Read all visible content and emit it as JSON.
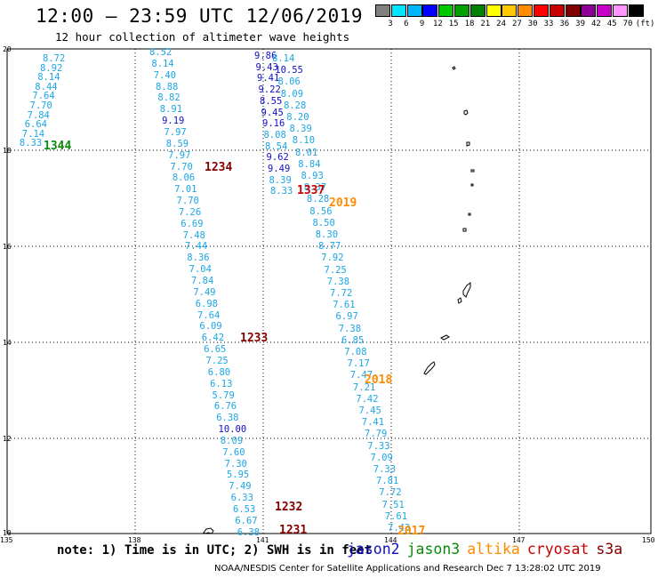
{
  "header": {
    "title": "12:00 – 23:59 UTC 12/06/2019",
    "subtitle": "12 hour collection of altimeter wave heights"
  },
  "legend": {
    "colors": [
      "#808080",
      "#00e5ff",
      "#00b4ff",
      "#0000ff",
      "#00c800",
      "#00a000",
      "#008000",
      "#ffff00",
      "#ffc800",
      "#ff8c00",
      "#ff0000",
      "#c80000",
      "#800000",
      "#8c0096",
      "#c800c8",
      "#ff96ff",
      "#000000"
    ],
    "labels": [
      "3",
      "6",
      "9",
      "12",
      "15",
      "18",
      "21",
      "24",
      "27",
      "30",
      "33",
      "36",
      "39",
      "42",
      "45",
      "70"
    ],
    "unit": "(ft)"
  },
  "axes": {
    "lat_labels": [
      "20",
      "18",
      "16",
      "14",
      "12",
      "10"
    ],
    "lon_labels": [
      "135",
      "138",
      "141",
      "144",
      "147",
      "150"
    ]
  },
  "passes": [
    {
      "values": [
        "8.72",
        "8.92",
        "8.14",
        "8.44",
        "7.64",
        "7.70",
        "7.84",
        "6.64",
        "7.14",
        "8.33"
      ]
    },
    {
      "values": [
        "8.52",
        "8.14",
        "7.40",
        "8.88",
        "8.82",
        "8.91",
        "9.19",
        "7.97",
        "8.59",
        "7.97",
        "7.70",
        "8.06",
        "7.01",
        "7.70",
        "7.26",
        "6.69",
        "7.48",
        "7.44",
        "8.36",
        "7.04",
        "7.84",
        "7.49",
        "6.98",
        "7.64",
        "6.09",
        "6.42",
        "6.65",
        "7.25",
        "6.80",
        "6.13",
        "5.79",
        "6.76",
        "6.38",
        "10.00",
        "8.09",
        "7.60",
        "7.30",
        "5.95",
        "7.49",
        "6.33",
        "6.53",
        "6.67",
        "6.38"
      ]
    },
    {
      "values": [
        "9.86",
        "9.43",
        "9.41",
        "9.22",
        "8.55",
        "9.45",
        "9.16",
        "8.08",
        "8.54",
        "9.62",
        "9.49",
        "8.39",
        "8.33"
      ]
    },
    {
      "values": [
        "8.14",
        "10.55",
        "8.06",
        "8.09",
        "8.28",
        "8.20",
        "8.39",
        "8.10",
        "8.01",
        "8.84",
        "8.93",
        "8.37",
        "8.28",
        "8.56",
        "8.50",
        "8.30",
        "8.77",
        "7.92",
        "7.25",
        "7.38",
        "7.72",
        "7.61",
        "6.97",
        "7.38",
        "6.85",
        "7.08",
        "7.17",
        "7.47",
        "7.21",
        "7.42",
        "7.45",
        "7.41",
        "7.79",
        "7.33",
        "7.09",
        "7.33",
        "7.81",
        "7.72",
        "7.51",
        "7.61",
        "7.43"
      ]
    }
  ],
  "rev_labels": [
    {
      "text": "1344",
      "color": "#0a8a0a"
    },
    {
      "text": "1234",
      "color": "#800000"
    },
    {
      "text": "1337",
      "color": "#c80000"
    },
    {
      "text": "2019",
      "color": "#ff8c00"
    },
    {
      "text": "1233",
      "color": "#800000"
    },
    {
      "text": "2018",
      "color": "#ff8c00"
    },
    {
      "text": "1232",
      "color": "#800000"
    },
    {
      "text": "1231",
      "color": "#800000"
    },
    {
      "text": "2017",
      "color": "#ff8c00"
    }
  ],
  "note": "note: 1) Time is in UTC; 2) SWH is in feet",
  "satellites": [
    {
      "name": "jason2",
      "color": "#1010c8"
    },
    {
      "name": "jason3",
      "color": "#0a8a0a"
    },
    {
      "name": "altika",
      "color": "#ff8c00"
    },
    {
      "name": "cryosat",
      "color": "#c80000"
    },
    {
      "name": "s3a",
      "color": "#800000"
    }
  ],
  "footer": "NOAA/NESDIS Center for Satellite Applications and Research   Dec  7 13:28:02 UTC 2019"
}
